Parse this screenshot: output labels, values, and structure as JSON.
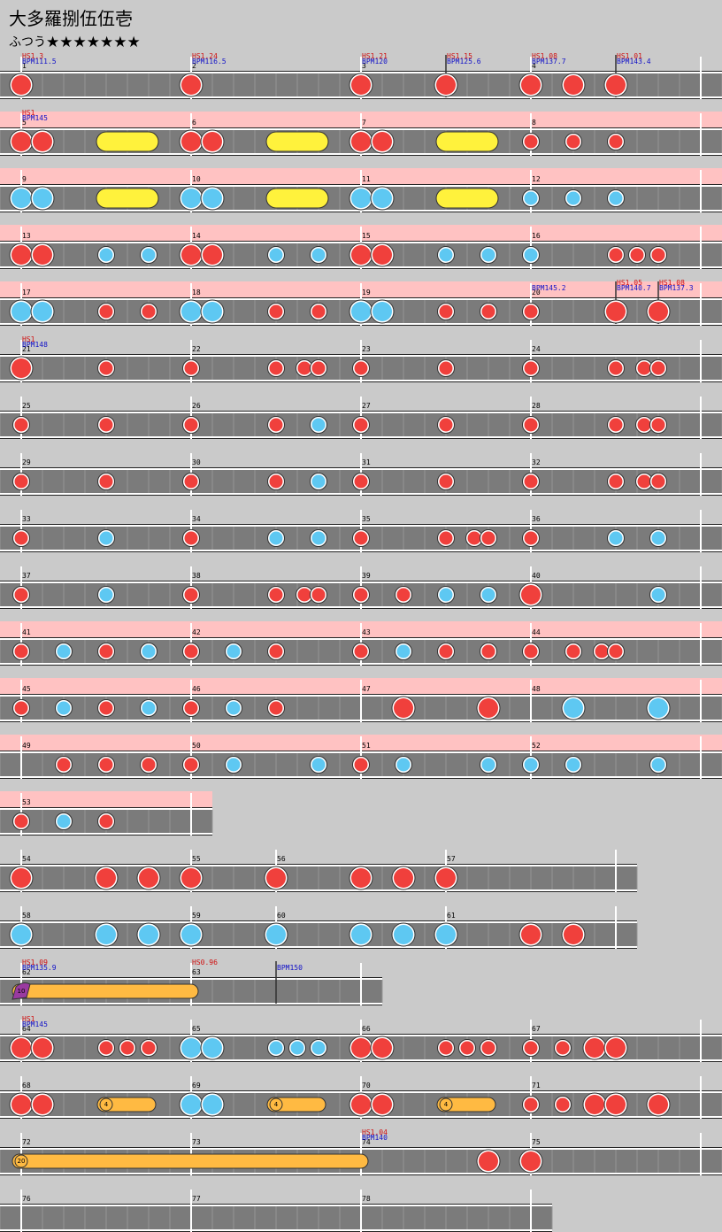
{
  "title": "大多羅捌伍伍壱",
  "difficulty": "ふつう",
  "stars": "★★★★★★★",
  "rows": [
    {
      "measures": [
        1,
        2,
        3,
        4
      ],
      "markers": [
        {
          "hs": "HS1.3",
          "bpm": "BPM111.5"
        },
        {
          "hs": "HS1.24",
          "bpm": "BPM116.5"
        },
        {
          "hs": "HS1.21",
          "bpm": "BPM120"
        },
        {
          "hs": "HS1.15",
          "bpm": "BPM125.6"
        },
        {
          "hs": "HS1.08",
          "bpm": "BPM137.7"
        },
        {
          "hs": "HS1.01",
          "bpm": "BPM143.4"
        }
      ]
    },
    {
      "measures": [
        5,
        6,
        7,
        8
      ],
      "markers": [
        {
          "hs": "HS1",
          "bpm": "BPM145"
        }
      ]
    },
    {
      "measures": [
        9,
        10,
        11,
        12
      ]
    },
    {
      "measures": [
        13,
        14,
        15,
        16
      ]
    },
    {
      "measures": [
        17,
        18,
        19,
        20
      ],
      "markers": [
        {
          "bpm": "BPM145.2"
        },
        {
          "hs": "HS1.05",
          "bpm": "BPM140.7"
        },
        {
          "hs": "HS1.08",
          "bpm": "BPM137.3"
        }
      ]
    },
    {
      "measures": [
        21,
        22,
        23,
        24
      ],
      "markers": [
        {
          "hs": "HS1",
          "bpm": "BPM148"
        }
      ]
    },
    {
      "measures": [
        25,
        26,
        27,
        28
      ]
    },
    {
      "measures": [
        29,
        30,
        31,
        32
      ]
    },
    {
      "measures": [
        33,
        34,
        35,
        36
      ]
    },
    {
      "measures": [
        37,
        38,
        39,
        40
      ]
    },
    {
      "measures": [
        41,
        42,
        43,
        44
      ]
    },
    {
      "measures": [
        45,
        46,
        47,
        48
      ]
    },
    {
      "measures": [
        49,
        50,
        51,
        52
      ]
    },
    {
      "measures": [
        53
      ]
    },
    {
      "measures": [
        54,
        55,
        56,
        57
      ]
    },
    {
      "measures": [
        58,
        59,
        60,
        61
      ]
    },
    {
      "measures": [
        62,
        63
      ],
      "markers": [
        {
          "hs": "HS1.09",
          "bpm": "BPM135.9"
        },
        {
          "hs": "HS0.96"
        },
        {
          "bpm": "BPM150"
        }
      ],
      "counts": [
        "10"
      ]
    },
    {
      "measures": [
        64,
        65,
        66,
        67
      ],
      "markers": [
        {
          "hs": "HS1",
          "bpm": "BPM145"
        }
      ]
    },
    {
      "measures": [
        68,
        69,
        70,
        71
      ],
      "counts": [
        "4",
        "4",
        "4"
      ]
    },
    {
      "measures": [
        72,
        73,
        74,
        75
      ],
      "markers": [
        {
          "hs": "HS1.04",
          "bpm": "BPM140"
        }
      ],
      "counts": [
        "20"
      ]
    },
    {
      "measures": [
        76,
        77,
        78
      ]
    }
  ]
}
